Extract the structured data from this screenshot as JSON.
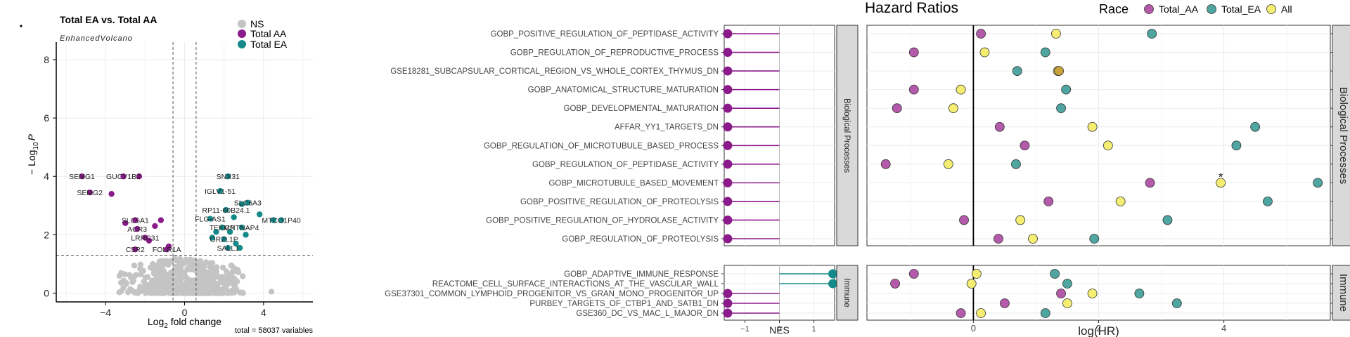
{
  "colors": {
    "ns": "#c4c4c4",
    "aa": "#8b1a8b",
    "ea": "#168a8a",
    "all": "#f6ee72",
    "aa_fill": "#b45aaa",
    "ea_fill": "#4fa6a0",
    "strip": "#d9d9d9",
    "grid": "#ebebeb"
  },
  "chart_data": [
    {
      "type": "scatter",
      "title": "Total EA vs. Total AA",
      "subtitle": "EnhancedVolcano",
      "xlabel_main": "Log",
      "xlabel_sub": "2",
      "xlabel_rest": " fold change",
      "ylabel_main": "− Log",
      "ylabel_sub": "10",
      "ylabel_p": "P",
      "caption": "total = 58037 variables",
      "xlim": [
        -6.5,
        6.5
      ],
      "ylim": [
        -0.3,
        8.6
      ],
      "x_ticks": [
        -4,
        0,
        4
      ],
      "y_ticks": [
        0,
        2,
        4,
        6,
        8
      ],
      "fc_cutoffs": [
        -0.585,
        0.585
      ],
      "p_cutoff": 1.3,
      "legend": [
        "NS",
        "Total AA",
        "Total EA"
      ],
      "labeled_points": [
        {
          "label": "SEMG1",
          "x": -5.2,
          "y": 4.0,
          "group": "aa"
        },
        {
          "label": "GUCY1B2",
          "x": -3.1,
          "y": 4.0,
          "group": "aa"
        },
        {
          "label": "SEMG2",
          "x": -4.8,
          "y": 3.45,
          "group": "aa"
        },
        {
          "label": "SLC5A1",
          "x": -2.5,
          "y": 2.5,
          "group": "aa"
        },
        {
          "label": "ACR3",
          "x": -2.4,
          "y": 2.2,
          "group": "aa"
        },
        {
          "label": "LRRC31",
          "x": -2.0,
          "y": 1.9,
          "group": "aa"
        },
        {
          "label": "C5R2",
          "x": -2.5,
          "y": 1.5,
          "group": "aa"
        },
        {
          "label": "FOLR1A",
          "x": -0.9,
          "y": 1.5,
          "group": "aa"
        },
        {
          "label": "SNX31",
          "x": 2.2,
          "y": 4.0,
          "group": "ea"
        },
        {
          "label": "IGLV1-51",
          "x": 1.8,
          "y": 3.5,
          "group": "ea"
        },
        {
          "label": "SLC6A3",
          "x": 3.2,
          "y": 3.1,
          "group": "ea"
        },
        {
          "label": "RP11-60B24.1",
          "x": 2.1,
          "y": 2.85,
          "group": "ea"
        },
        {
          "label": "MTCO1P40",
          "x": 4.9,
          "y": 2.5,
          "group": "ea"
        },
        {
          "label": "FLG-AS1",
          "x": 1.3,
          "y": 2.55,
          "group": "ea"
        },
        {
          "label": "TEKMP",
          "x": 1.9,
          "y": 2.25,
          "group": "ea"
        },
        {
          "label": "CNTNAP4",
          "x": 2.9,
          "y": 2.25,
          "group": "ea"
        },
        {
          "label": "OR2L1P",
          "x": 2.0,
          "y": 1.85,
          "group": "ea"
        },
        {
          "label": "SALL1",
          "x": 2.2,
          "y": 1.55,
          "group": "ea"
        }
      ],
      "other_points": [
        {
          "x": -1.2,
          "y": 2.5,
          "group": "aa"
        },
        {
          "x": -1.5,
          "y": 2.3,
          "group": "aa"
        },
        {
          "x": -3.7,
          "y": 3.4,
          "group": "aa"
        },
        {
          "x": -2.3,
          "y": 4.0,
          "group": "aa"
        },
        {
          "x": -3.0,
          "y": 2.4,
          "group": "aa"
        },
        {
          "x": -1.8,
          "y": 1.8,
          "group": "aa"
        },
        {
          "x": -0.8,
          "y": 1.6,
          "group": "aa"
        },
        {
          "x": 2.9,
          "y": 3.05,
          "group": "ea"
        },
        {
          "x": 3.1,
          "y": 2.0,
          "group": "ea"
        },
        {
          "x": 2.6,
          "y": 1.7,
          "group": "ea"
        },
        {
          "x": 1.6,
          "y": 2.1,
          "group": "ea"
        },
        {
          "x": 4.5,
          "y": 2.5,
          "group": "ea"
        },
        {
          "x": 3.8,
          "y": 2.7,
          "group": "ea"
        },
        {
          "x": 2.5,
          "y": 2.6,
          "group": "ea"
        },
        {
          "x": 2.3,
          "y": 2.1,
          "group": "ea"
        },
        {
          "x": 1.4,
          "y": 1.9,
          "group": "ea"
        },
        {
          "x": 2.8,
          "y": 1.55,
          "group": "ea"
        }
      ]
    },
    {
      "type": "lollipop",
      "xlabel": "NES",
      "xlim": [
        -1.6,
        1.6
      ],
      "x_ticks": [
        -1,
        0,
        1
      ],
      "panels": [
        {
          "name": "Biological Processes",
          "terms": [
            {
              "name": "GOBP_POSITIVE_REGULATION_OF_PEPTIDASE_ACTIVITY",
              "nes": -1.5
            },
            {
              "name": "GOBP_REGULATION_OF_REPRODUCTIVE_PROCESS",
              "nes": -1.5
            },
            {
              "name": "GSE18281_SUBCAPSULAR_CORTICAL_REGION_VS_WHOLE_CORTEX_THYMUS_DN",
              "nes": -1.5
            },
            {
              "name": "GOBP_ANATOMICAL_STRUCTURE_MATURATION",
              "nes": -1.5
            },
            {
              "name": "GOBP_DEVELOPMENTAL_MATURATION",
              "nes": -1.5
            },
            {
              "name": "AFFAR_YY1_TARGETS_DN",
              "nes": -1.5
            },
            {
              "name": "GOBP_REGULATION_OF_MICROTUBULE_BASED_PROCESS",
              "nes": -1.5
            },
            {
              "name": "GOBP_REGULATION_OF_PEPTIDASE_ACTIVITY",
              "nes": -1.5
            },
            {
              "name": "GOBP_MICROTUBULE_BASED_MOVEMENT",
              "nes": -1.5
            },
            {
              "name": "GOBP_POSITIVE_REGULATION_OF_PROTEOLYSIS",
              "nes": -1.5
            },
            {
              "name": "GOBP_POSITIVE_REGULATION_OF_HYDROLASE_ACTIVITY",
              "nes": -1.5
            },
            {
              "name": "GOBP_REGULATION_OF_PROTEOLYSIS",
              "nes": -1.5
            }
          ]
        },
        {
          "name": "Immune",
          "terms": [
            {
              "name": "GOBP_ADAPTIVE_IMMUNE_RESPONSE",
              "nes": 1.55
            },
            {
              "name": "REACTOME_CELL_SURFACE_INTERACTIONS_AT_THE_VASCULAR_WALL",
              "nes": 1.55
            },
            {
              "name": "GSE37301_COMMON_LYMPHOID_PROGENITOR_VS_GRAN_MONO_PROGENITOR_UP",
              "nes": -1.5
            },
            {
              "name": "PURBEY_TARGETS_OF_CTBP1_AND_SATB1_DN",
              "nes": -1.5
            },
            {
              "name": "GSE360_DC_VS_MAC_L_MAJOR_DN",
              "nes": -1.5
            }
          ]
        }
      ]
    },
    {
      "type": "scatter",
      "title": "Hazard Ratios",
      "xlabel": "log(HR)",
      "xlim": [
        -1.7,
        5.7
      ],
      "x_ticks": [
        0,
        2,
        4
      ],
      "legend_title": "Race",
      "legend": [
        "Total_AA",
        "Total_EA",
        "All"
      ],
      "annotation": "*",
      "panels": [
        {
          "name": "Biological Processes",
          "rows": [
            {
              "aa": 0.12,
              "ea": 2.85,
              "all": 1.32
            },
            {
              "aa": -0.95,
              "ea": 1.15,
              "all": 0.18
            },
            {
              "aa": null,
              "ea": 0.7,
              "all": 1.35,
              "overlap": true
            },
            {
              "aa": -0.95,
              "ea": 1.48,
              "all": -0.2
            },
            {
              "aa": -1.22,
              "ea": 1.4,
              "all": -0.32
            },
            {
              "aa": 0.42,
              "ea": 4.5,
              "all": 1.9
            },
            {
              "aa": 0.82,
              "ea": 4.2,
              "all": 2.15
            },
            {
              "aa": -1.4,
              "ea": 0.68,
              "all": -0.4
            },
            {
              "aa": 2.82,
              "ea": 5.5,
              "all": 3.95,
              "star": true
            },
            {
              "aa": 1.2,
              "ea": 4.7,
              "all": 2.35
            },
            {
              "aa": -0.15,
              "ea": 3.1,
              "all": 0.75
            },
            {
              "aa": 0.4,
              "ea": 1.93,
              "all": 0.95
            }
          ]
        },
        {
          "name": "Immune",
          "rows": [
            {
              "aa": -0.95,
              "ea": 1.3,
              "all": 0.05
            },
            {
              "aa": -1.25,
              "ea": 1.5,
              "all": -0.03
            },
            {
              "aa": 1.4,
              "ea": 2.65,
              "all": 1.9
            },
            {
              "aa": 0.5,
              "ea": 3.25,
              "all": 1.5
            },
            {
              "aa": -0.2,
              "ea": 1.15,
              "all": 0.12
            }
          ]
        }
      ]
    }
  ]
}
